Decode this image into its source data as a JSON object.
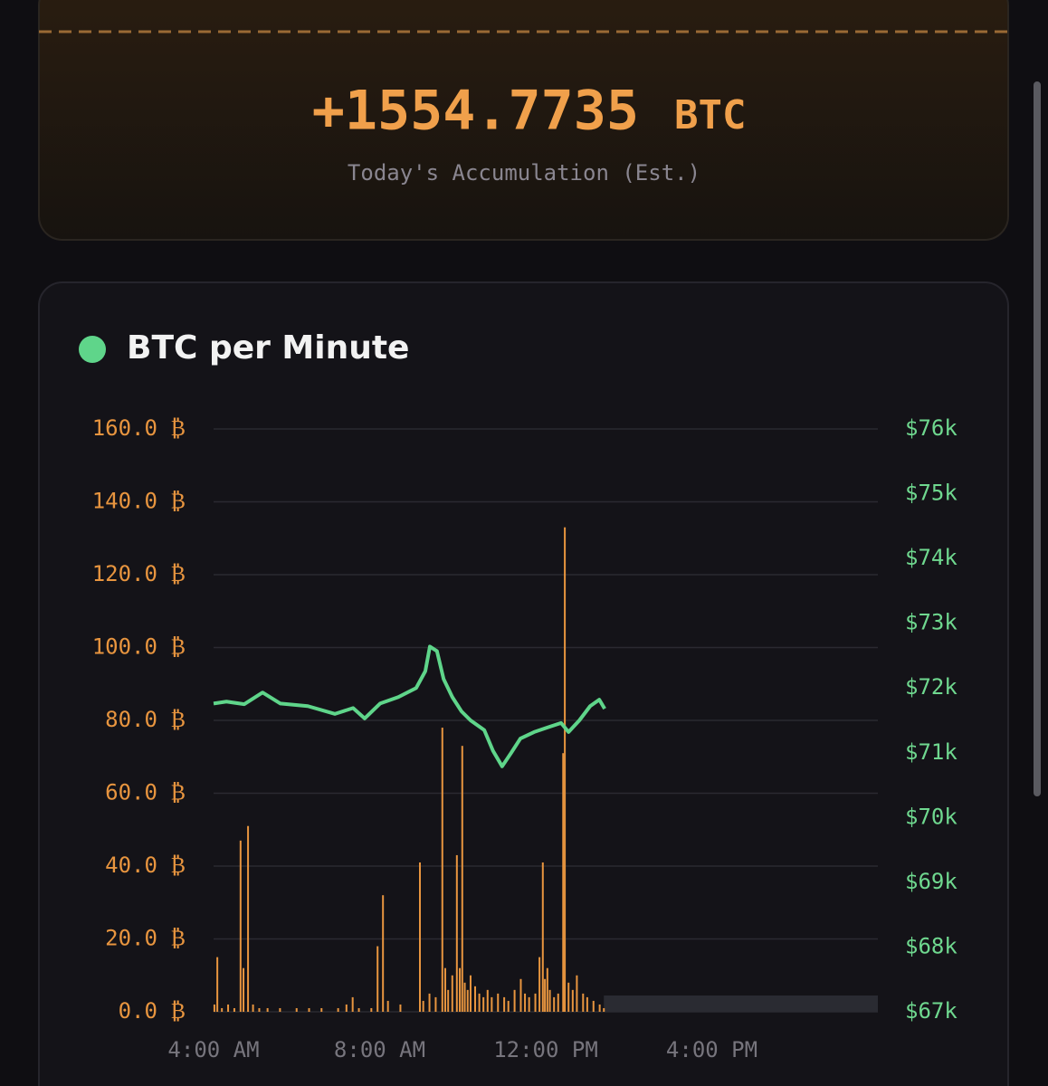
{
  "accumulation": {
    "value": "+1554.7735",
    "unit": "BTC",
    "label": "Today's Accumulation (Est.)"
  },
  "chart_data": {
    "type": "bar",
    "title": "BTC per Minute",
    "xlim": [
      4,
      20
    ],
    "xticks": [
      {
        "value": 4,
        "label": "4:00 AM"
      },
      {
        "value": 8,
        "label": "8:00 AM"
      },
      {
        "value": 12,
        "label": "12:00 PM"
      },
      {
        "value": 16,
        "label": "4:00 PM"
      }
    ],
    "ylim": [
      0,
      160
    ],
    "yticks": [
      {
        "value": 0,
        "label": "0.0 ₿"
      },
      {
        "value": 20,
        "label": "20.0 ₿"
      },
      {
        "value": 40,
        "label": "40.0 ₿"
      },
      {
        "value": 60,
        "label": "60.0 ₿"
      },
      {
        "value": 80,
        "label": "80.0 ₿"
      },
      {
        "value": 100,
        "label": "100.0 ₿"
      },
      {
        "value": 120,
        "label": "120.0 ₿"
      },
      {
        "value": 140,
        "label": "140.0 ₿"
      },
      {
        "value": 160,
        "label": "160.0 ₿"
      }
    ],
    "y2lim": [
      67000,
      76000
    ],
    "y2ticks": [
      {
        "value": 67000,
        "label": "$67k"
      },
      {
        "value": 68000,
        "label": "$68k"
      },
      {
        "value": 69000,
        "label": "$69k"
      },
      {
        "value": 70000,
        "label": "$70k"
      },
      {
        "value": 71000,
        "label": "$71k"
      },
      {
        "value": 72000,
        "label": "$72k"
      },
      {
        "value": 73000,
        "label": "$73k"
      },
      {
        "value": 74000,
        "label": "$74k"
      },
      {
        "value": 75000,
        "label": "$75k"
      },
      {
        "value": 76000,
        "label": "$76k"
      }
    ],
    "grid": true,
    "series": [
      {
        "type": "bar",
        "color": "#e8953f",
        "x": [
          4.02,
          4.09,
          4.2,
          4.35,
          4.5,
          4.65,
          4.72,
          4.83,
          4.95,
          5.1,
          5.3,
          5.6,
          6.0,
          6.3,
          6.6,
          7.0,
          7.2,
          7.35,
          7.5,
          7.8,
          7.95,
          8.08,
          8.2,
          8.5,
          8.97,
          9.05,
          9.2,
          9.35,
          9.51,
          9.58,
          9.65,
          9.75,
          9.86,
          9.93,
          9.99,
          10.05,
          10.12,
          10.19,
          10.3,
          10.4,
          10.5,
          10.6,
          10.7,
          10.85,
          11.0,
          11.1,
          11.25,
          11.4,
          11.5,
          11.6,
          11.75,
          11.85,
          11.93,
          11.98,
          12.04,
          12.1,
          12.2,
          12.3,
          12.42,
          12.46,
          12.55,
          12.65,
          12.75,
          12.9,
          13.0,
          13.15,
          13.3,
          13.4
        ],
        "values": [
          2,
          15,
          1,
          2,
          1,
          47,
          12,
          51,
          2,
          1,
          1,
          1,
          1,
          1,
          1,
          1,
          2,
          4,
          1,
          1,
          18,
          32,
          3,
          2,
          41,
          3,
          5,
          4,
          78,
          12,
          6,
          10,
          43,
          12,
          73,
          8,
          6,
          10,
          7,
          5,
          4,
          6,
          4,
          5,
          4,
          3,
          6,
          9,
          5,
          4,
          5,
          15,
          41,
          9,
          12,
          6,
          4,
          5,
          71,
          133,
          8,
          6,
          10,
          5,
          4,
          3,
          2,
          1
        ]
      },
      {
        "type": "line",
        "color": "#5fd58a",
        "axis": "y2",
        "x": [
          4.0,
          4.31,
          4.74,
          5.18,
          5.61,
          6.27,
          6.92,
          7.36,
          7.64,
          8.01,
          8.45,
          8.88,
          9.1,
          9.21,
          9.38,
          9.54,
          9.75,
          9.97,
          10.19,
          10.52,
          10.73,
          10.95,
          11.17,
          11.39,
          11.72,
          12.04,
          12.37,
          12.55,
          12.81,
          13.07,
          13.29,
          13.42
        ],
        "values": [
          71760,
          71790,
          71750,
          71930,
          71760,
          71720,
          71600,
          71690,
          71530,
          71760,
          71860,
          72000,
          72260,
          72640,
          72570,
          72140,
          71860,
          71640,
          71500,
          71350,
          71030,
          70790,
          71000,
          71220,
          71320,
          71390,
          71460,
          71320,
          71500,
          71720,
          71820,
          71680
        ]
      }
    ]
  }
}
